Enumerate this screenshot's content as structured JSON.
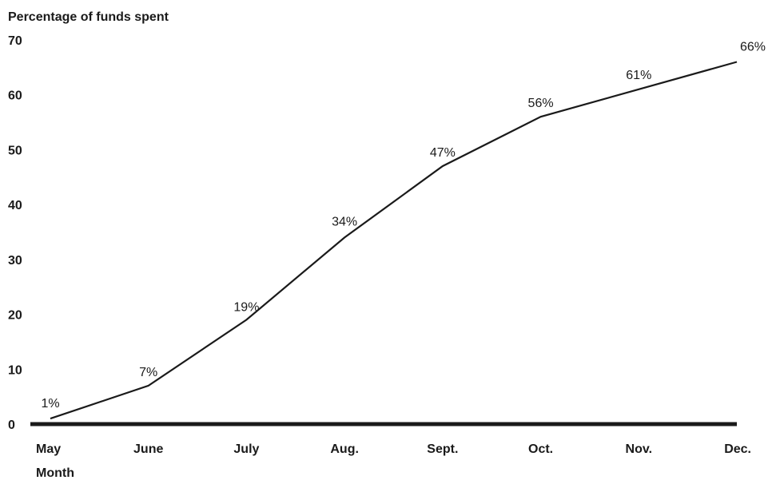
{
  "chart_data": {
    "type": "line",
    "title": "",
    "ylabel": "Percentage of funds spent",
    "xlabel": "Month",
    "categories": [
      "May",
      "June",
      "July",
      "Aug.",
      "Sept.",
      "Oct.",
      "Nov.",
      "Dec."
    ],
    "series": [
      {
        "values": [
          1,
          7,
          19,
          34,
          47,
          56,
          61,
          66
        ]
      }
    ],
    "data_labels": [
      "1%",
      "7%",
      "19%",
      "34%",
      "47%",
      "56%",
      "61%",
      "66%"
    ],
    "ylim": [
      0,
      70
    ],
    "yticks": [
      "0",
      "10",
      "20",
      "30",
      "40",
      "50",
      "60",
      "70"
    ],
    "grid": false,
    "legend": "none",
    "colors": {
      "line": "#1a1a1a",
      "axis": "#1a1a1a",
      "text": "#1a1a1a"
    }
  }
}
